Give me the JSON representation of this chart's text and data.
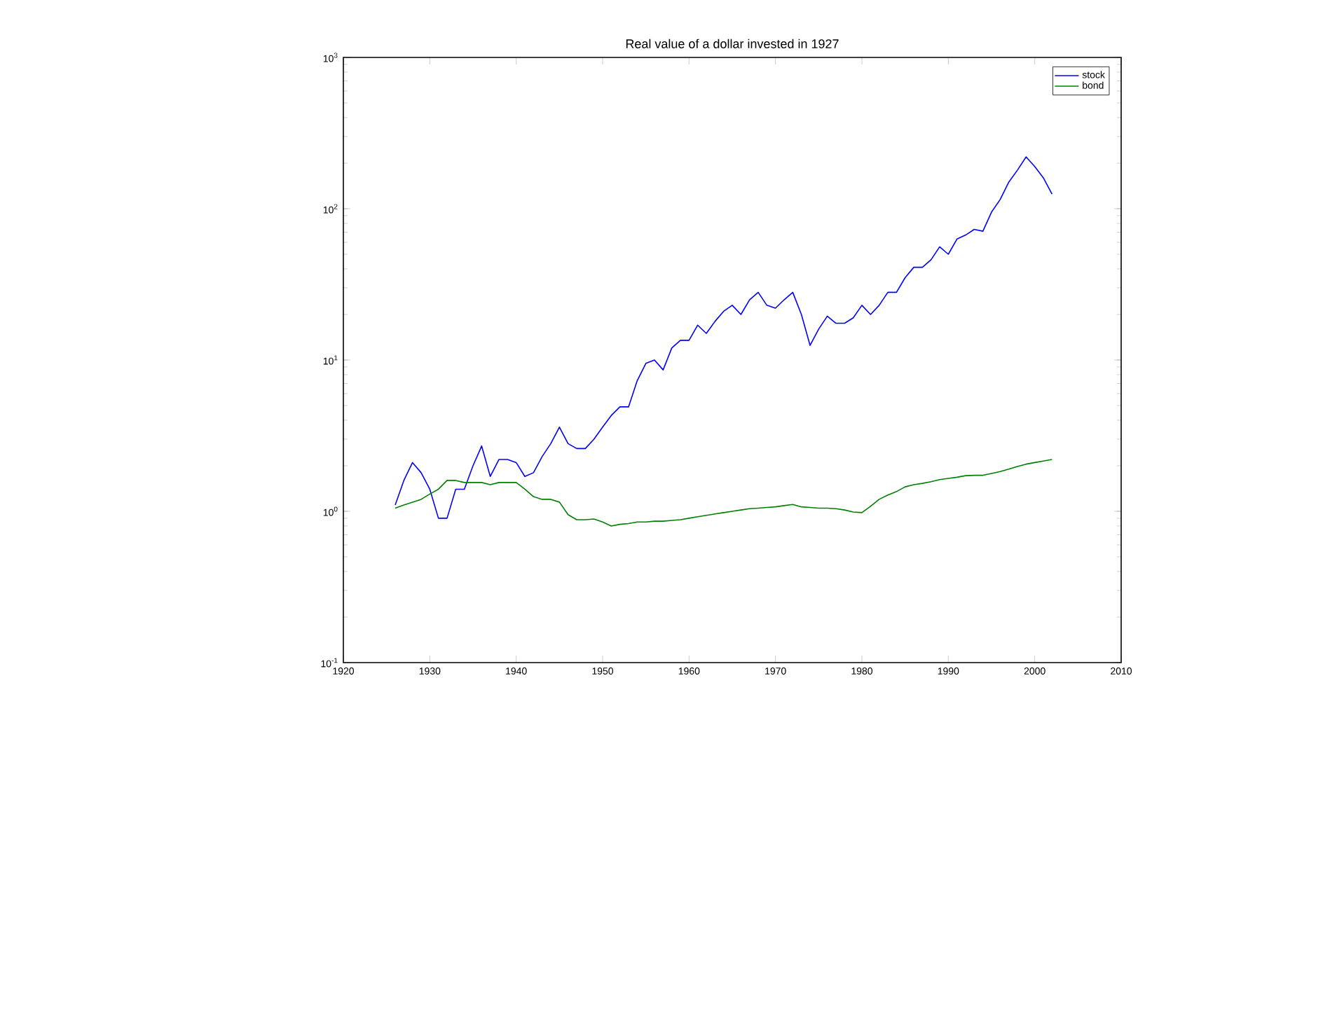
{
  "chart_data": {
    "type": "line",
    "title": "Real value of a dollar invested in 1927",
    "log": "y",
    "legend": "top right",
    "grid": false,
    "x": [
      1926,
      1927,
      1928,
      1929,
      1930,
      1931,
      1932,
      1933,
      1934,
      1935,
      1936,
      1937,
      1938,
      1939,
      1940,
      1941,
      1942,
      1943,
      1944,
      1945,
      1946,
      1947,
      1948,
      1949,
      1950,
      1951,
      1952,
      1953,
      1954,
      1955,
      1956,
      1957,
      1958,
      1959,
      1960,
      1961,
      1962,
      1963,
      1964,
      1965,
      1966,
      1967,
      1968,
      1969,
      1970,
      1971,
      1972,
      1973,
      1974,
      1975,
      1976,
      1977,
      1978,
      1979,
      1980,
      1981,
      1982,
      1983,
      1984,
      1985,
      1986,
      1987,
      1988,
      1989,
      1990,
      1991,
      1992,
      1993,
      1994,
      1995,
      1996,
      1997,
      1998,
      1999,
      2000,
      2001,
      2002
    ],
    "series": [
      {
        "name": "stock",
        "color": "#0000ff",
        "values": [
          1.1,
          1.6,
          2.1,
          1.8,
          1.4,
          0.9,
          0.9,
          1.4,
          1.4,
          2.0,
          2.7,
          1.7,
          2.2,
          2.2,
          2.1,
          1.7,
          1.8,
          2.3,
          2.8,
          3.6,
          2.8,
          2.6,
          2.6,
          3.0,
          3.6,
          4.3,
          4.9,
          4.9,
          7.3,
          9.5,
          10,
          8.6,
          12,
          13.5,
          13.5,
          17,
          15,
          18,
          21,
          23,
          20,
          25,
          28,
          23,
          22,
          25,
          28,
          20,
          12.5,
          16,
          19.5,
          17.5,
          17.5,
          19,
          23,
          20,
          23,
          28,
          28,
          35,
          41,
          41,
          46,
          56,
          50,
          63,
          67,
          73,
          71,
          95,
          115,
          150,
          180,
          220,
          190,
          160,
          125
        ]
      },
      {
        "name": "bond",
        "color": "#008000",
        "values": [
          1.05,
          1.1,
          1.15,
          1.2,
          1.3,
          1.4,
          1.6,
          1.6,
          1.55,
          1.55,
          1.55,
          1.5,
          1.55,
          1.55,
          1.55,
          1.4,
          1.25,
          1.2,
          1.2,
          1.15,
          0.95,
          0.88,
          0.88,
          0.89,
          0.85,
          0.8,
          0.82,
          0.83,
          0.85,
          0.85,
          0.86,
          0.86,
          0.87,
          0.88,
          0.9,
          0.92,
          0.94,
          0.96,
          0.98,
          1.0,
          1.02,
          1.04,
          1.05,
          1.06,
          1.07,
          1.09,
          1.11,
          1.07,
          1.06,
          1.05,
          1.05,
          1.04,
          1.02,
          0.99,
          0.98,
          1.08,
          1.2,
          1.28,
          1.35,
          1.45,
          1.5,
          1.53,
          1.57,
          1.62,
          1.65,
          1.68,
          1.72,
          1.73,
          1.73,
          1.78,
          1.83,
          1.9,
          1.98,
          2.05,
          2.1,
          2.15,
          2.2
        ]
      }
    ],
    "xlim": [
      1920,
      2010
    ],
    "xticks": [
      1920,
      1930,
      1940,
      1950,
      1960,
      1970,
      1980,
      1990,
      2000,
      2010
    ],
    "ylim": [
      0.1,
      1000
    ],
    "yticks": [
      {
        "value": 0.1,
        "label": "10$^{-1}$"
      },
      {
        "value": 1,
        "label": "10$^{0}$"
      },
      {
        "value": 10,
        "label": "10$^{1}$"
      },
      {
        "value": 100,
        "label": "10$^{2}$"
      },
      {
        "value": 1000,
        "label": "10$^{3}$"
      }
    ]
  }
}
